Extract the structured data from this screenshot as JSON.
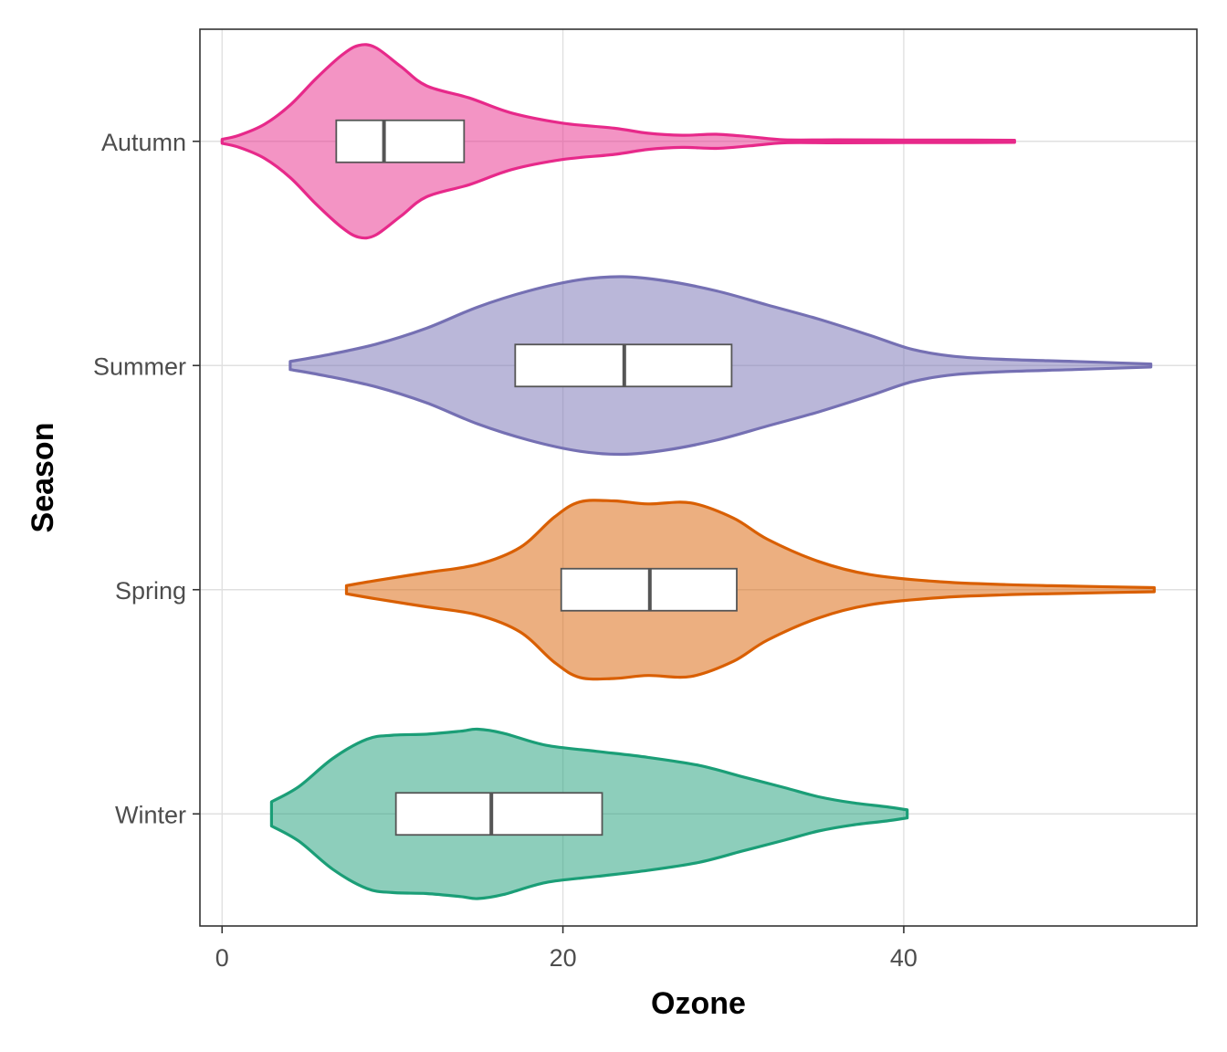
{
  "chart_data": {
    "type": "violin",
    "xlabel": "Ozone",
    "ylabel": "Season",
    "xlim": [
      -1.3,
      57.2
    ],
    "x_ticks": [
      0,
      20,
      40
    ],
    "grid": true,
    "legend": "none",
    "categories": [
      "Autumn",
      "Summer",
      "Spring",
      "Winter"
    ],
    "series": [
      {
        "category": "Autumn",
        "color": "#e7298a",
        "box": {
          "q1": 6.7,
          "median": 9.5,
          "q3": 14.2
        },
        "density": [
          [
            0.0,
            0.02
          ],
          [
            1.0,
            0.06
          ],
          [
            2.5,
            0.17
          ],
          [
            4.0,
            0.36
          ],
          [
            5.5,
            0.62
          ],
          [
            7.0,
            0.85
          ],
          [
            8.0,
            0.95
          ],
          [
            9.0,
            0.93
          ],
          [
            10.5,
            0.74
          ],
          [
            12.0,
            0.55
          ],
          [
            14.5,
            0.43
          ],
          [
            17.0,
            0.28
          ],
          [
            20.0,
            0.18
          ],
          [
            23.0,
            0.13
          ],
          [
            25.0,
            0.08
          ],
          [
            27.0,
            0.06
          ],
          [
            29.0,
            0.07
          ],
          [
            31.0,
            0.045
          ],
          [
            33.0,
            0.015
          ],
          [
            36.0,
            0.015
          ],
          [
            40.0,
            0.013
          ],
          [
            44.0,
            0.012
          ],
          [
            46.5,
            0.01
          ]
        ]
      },
      {
        "category": "Summer",
        "color": "#7570b3",
        "box": {
          "q1": 17.2,
          "median": 23.6,
          "q3": 29.9
        },
        "density": [
          [
            4.0,
            0.04
          ],
          [
            6.0,
            0.1
          ],
          [
            9.0,
            0.21
          ],
          [
            12.0,
            0.37
          ],
          [
            15.0,
            0.58
          ],
          [
            18.0,
            0.74
          ],
          [
            21.0,
            0.85
          ],
          [
            23.5,
            0.88
          ],
          [
            26.0,
            0.84
          ],
          [
            29.0,
            0.74
          ],
          [
            32.0,
            0.6
          ],
          [
            35.0,
            0.46
          ],
          [
            38.0,
            0.3
          ],
          [
            40.5,
            0.16
          ],
          [
            43.0,
            0.09
          ],
          [
            46.0,
            0.06
          ],
          [
            50.0,
            0.04
          ],
          [
            54.5,
            0.015
          ]
        ]
      },
      {
        "category": "Spring",
        "color": "#d95f02",
        "box": {
          "q1": 19.9,
          "median": 25.1,
          "q3": 30.2
        },
        "density": [
          [
            7.3,
            0.04
          ],
          [
            9.0,
            0.09
          ],
          [
            12.0,
            0.17
          ],
          [
            15.0,
            0.25
          ],
          [
            17.5,
            0.42
          ],
          [
            19.5,
            0.72
          ],
          [
            21.0,
            0.87
          ],
          [
            23.0,
            0.88
          ],
          [
            25.0,
            0.85
          ],
          [
            27.5,
            0.86
          ],
          [
            30.0,
            0.71
          ],
          [
            32.0,
            0.5
          ],
          [
            35.0,
            0.28
          ],
          [
            38.0,
            0.15
          ],
          [
            42.0,
            0.08
          ],
          [
            46.0,
            0.05
          ],
          [
            50.0,
            0.035
          ],
          [
            54.7,
            0.02
          ]
        ]
      },
      {
        "category": "Winter",
        "color": "#1b9e77",
        "box": {
          "q1": 10.2,
          "median": 15.8,
          "q3": 22.3
        },
        "density": [
          [
            2.9,
            0.12
          ],
          [
            4.5,
            0.27
          ],
          [
            6.5,
            0.55
          ],
          [
            8.5,
            0.74
          ],
          [
            10.0,
            0.78
          ],
          [
            12.0,
            0.79
          ],
          [
            14.0,
            0.82
          ],
          [
            15.0,
            0.84
          ],
          [
            16.5,
            0.8
          ],
          [
            19.0,
            0.68
          ],
          [
            22.0,
            0.62
          ],
          [
            25.0,
            0.56
          ],
          [
            28.0,
            0.48
          ],
          [
            30.5,
            0.37
          ],
          [
            33.0,
            0.26
          ],
          [
            35.0,
            0.17
          ],
          [
            37.0,
            0.11
          ],
          [
            39.0,
            0.07
          ],
          [
            40.2,
            0.04
          ]
        ]
      }
    ]
  }
}
